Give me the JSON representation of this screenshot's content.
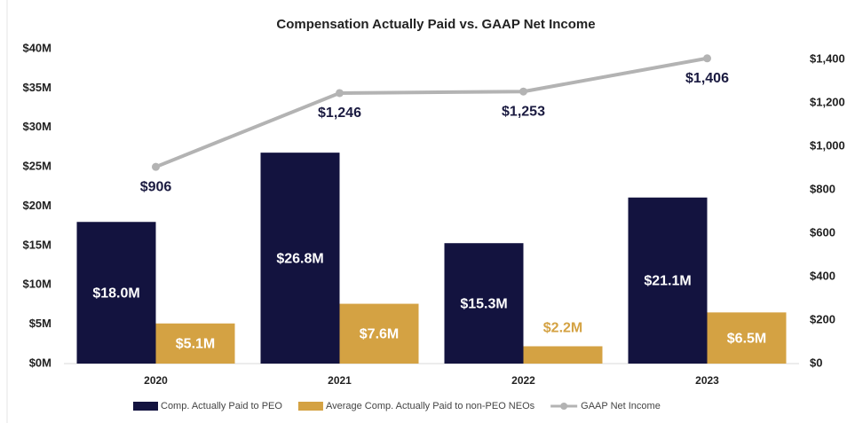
{
  "chart_data": {
    "type": "bar_line",
    "title": "Compensation Actually Paid vs. GAAP Net Income",
    "categories": [
      "2020",
      "2021",
      "2022",
      "2023"
    ],
    "series": [
      {
        "name": "Comp. Actually Paid to PEO",
        "color": "#13133f",
        "values": [
          18.0,
          26.8,
          15.3,
          21.1
        ],
        "value_labels": [
          "$18.0M",
          "$26.8M",
          "$15.3M",
          "$21.1M"
        ]
      },
      {
        "name": "Average Comp. Actually Paid to non-PEO NEOs",
        "color": "#d4a243",
        "values": [
          5.1,
          7.6,
          2.2,
          6.5
        ],
        "value_labels": [
          "$5.1M",
          "$7.6M",
          "$2.2M",
          "$6.5M"
        ]
      },
      {
        "name": "GAAP Net Income",
        "color": "#b3b3b3",
        "axis": "y2",
        "type": "line",
        "values": [
          906,
          1246,
          1253,
          1406
        ],
        "value_labels": [
          "$906",
          "$1,246",
          "$1,253",
          "$1,406"
        ]
      }
    ],
    "ylim": [
      0,
      40
    ],
    "yticks": [
      {
        "value": 0,
        "label": "$0M"
      },
      {
        "value": 5,
        "label": "$5M"
      },
      {
        "value": 10,
        "label": "$10M"
      },
      {
        "value": 15,
        "label": "$15M"
      },
      {
        "value": 20,
        "label": "$20M"
      },
      {
        "value": 25,
        "label": "$25M"
      },
      {
        "value": 30,
        "label": "$30M"
      },
      {
        "value": 35,
        "label": "$35M"
      },
      {
        "value": 40,
        "label": "$40M"
      }
    ],
    "y2lim": [
      0,
      1450
    ],
    "y2ticks": [
      {
        "value": 0,
        "label": "$0"
      },
      {
        "value": 200,
        "label": "$200"
      },
      {
        "value": 400,
        "label": "$400"
      },
      {
        "value": 600,
        "label": "$600"
      },
      {
        "value": 800,
        "label": "$800"
      },
      {
        "value": 1000,
        "label": "$1,000"
      },
      {
        "value": 1200,
        "label": "$1,200"
      },
      {
        "value": 1400,
        "label": "$1,400"
      }
    ],
    "legend": "bottom"
  }
}
